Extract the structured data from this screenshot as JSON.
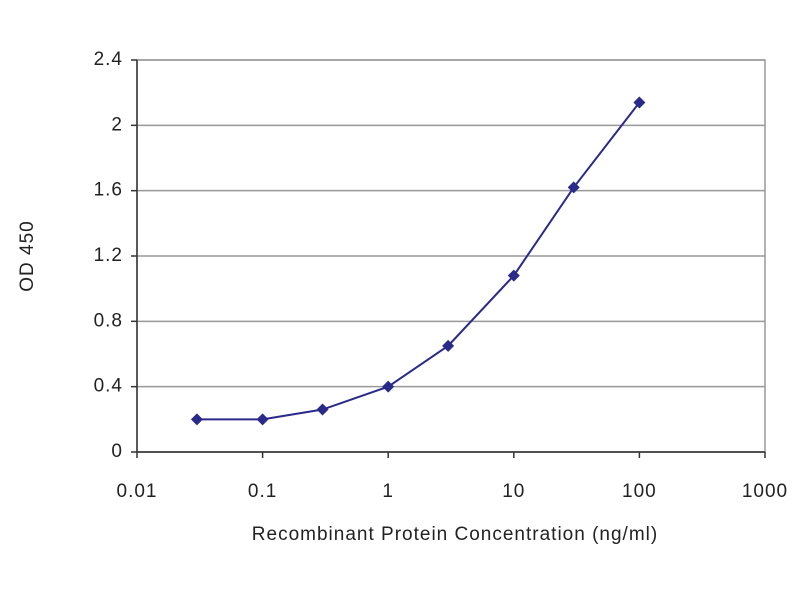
{
  "chart_data": {
    "type": "line",
    "x_label": "Recombinant Protein Concentration (ng/ml)",
    "y_label": "OD 450",
    "x": [
      0.03,
      0.1,
      0.3,
      1,
      3,
      10,
      30,
      100
    ],
    "values": [
      0.2,
      0.2,
      0.26,
      0.4,
      0.65,
      1.08,
      1.62,
      2.14
    ],
    "color": "#2a2a8a",
    "x_log": true,
    "xlim": [
      0.01,
      1000
    ],
    "xticks": [
      0.01,
      0.1,
      1,
      10,
      100,
      1000
    ],
    "ylim": [
      0,
      2.4
    ],
    "yticks": [
      0,
      0.4,
      0.8,
      1.2,
      1.6,
      2,
      2.4
    ],
    "grid": true
  }
}
